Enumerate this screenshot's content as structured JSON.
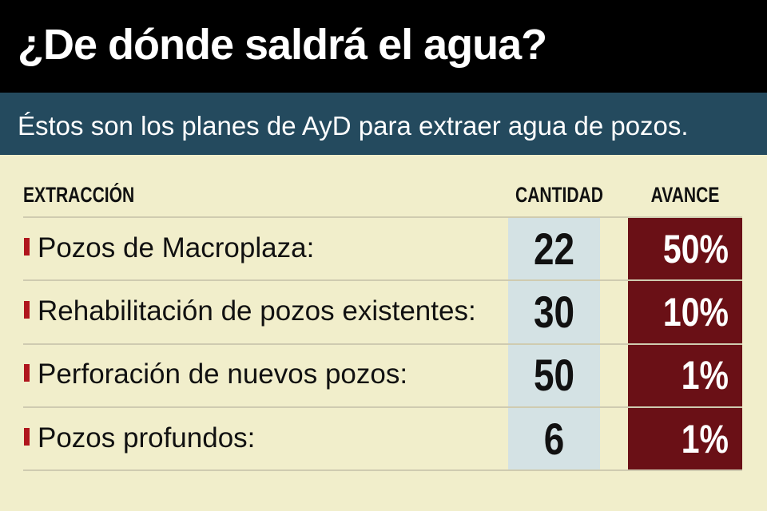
{
  "title": "¿De dónde saldrá el agua?",
  "subtitle": "Éstos son los planes de AyD para extraer agua de pozos.",
  "columns": {
    "label": "EXTRACCIÓN",
    "quantity": "CANTIDAD",
    "progress": "AVANCE"
  },
  "rows": [
    {
      "label": "Pozos de Macroplaza:",
      "quantity": "22",
      "progress": "50%"
    },
    {
      "label": "Rehabilitación de pozos existentes:",
      "quantity": "30",
      "progress": "10%"
    },
    {
      "label": "Perforación de nuevos pozos:",
      "quantity": "50",
      "progress": "1%"
    },
    {
      "label": "Pozos profundos:",
      "quantity": "6",
      "progress": "1%"
    }
  ],
  "colors": {
    "header_bg": "#000000",
    "subheader_bg": "#244a5e",
    "page_bg": "#f1eecb",
    "quantity_col_bg": "#d4e2e4",
    "progress_col_bg": "#6a1016",
    "bullet": "#b0161d"
  }
}
